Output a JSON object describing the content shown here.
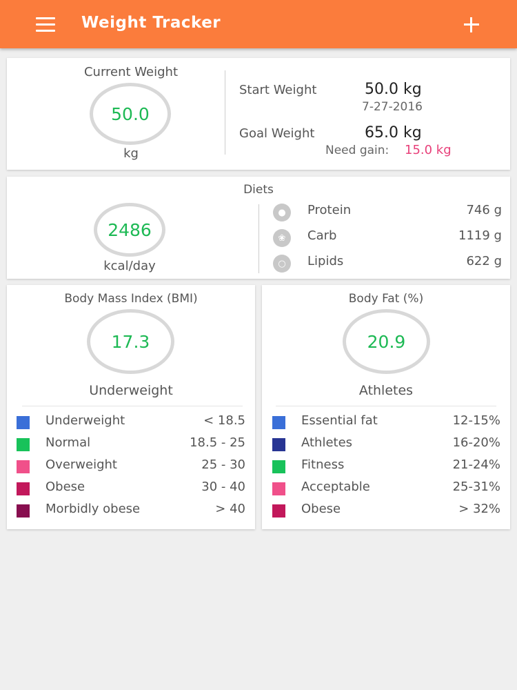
{
  "app": {
    "title": "Weight Tracker",
    "menu_icon": "hamburger-menu-icon",
    "add_icon": "plus-icon",
    "accent": "#fb7c3c"
  },
  "weight": {
    "heading": "Current Weight",
    "current": "50.0",
    "unit": "kg",
    "start_label": "Start Weight",
    "start_value": "50.0 kg",
    "start_date": "7-27-2016",
    "goal_label": "Goal Weight",
    "goal_value": "65.0 kg",
    "need_label": "Need gain:",
    "need_value": "15.0 kg"
  },
  "diets": {
    "heading": "Diets",
    "kcal": "2486",
    "kcal_unit": "kcal/day",
    "items": [
      {
        "label": "Protein",
        "value": "746 g",
        "icon": "protein-icon"
      },
      {
        "label": "Carb",
        "value": "1119 g",
        "icon": "wheat-icon"
      },
      {
        "label": "Lipids",
        "value": "622 g",
        "icon": "lipids-icon"
      }
    ]
  },
  "bmi": {
    "heading": "Body Mass Index (BMI)",
    "value": "17.3",
    "status": "Underweight",
    "legend": [
      {
        "label": "Underweight",
        "range": "< 18.5",
        "color": "#3a6fd8"
      },
      {
        "label": "Normal",
        "range": "18.5 - 25",
        "color": "#18c25a"
      },
      {
        "label": "Overweight",
        "range": "25 - 30",
        "color": "#f0508a"
      },
      {
        "label": "Obese",
        "range": "30 - 40",
        "color": "#c2185b"
      },
      {
        "label": "Morbidly obese",
        "range": "> 40",
        "color": "#880e4f"
      }
    ]
  },
  "fat": {
    "heading": "Body Fat (%)",
    "value": "20.9",
    "status": "Athletes",
    "legend": [
      {
        "label": "Essential fat",
        "range": "12-15%",
        "color": "#3a6fd8"
      },
      {
        "label": "Athletes",
        "range": "16-20%",
        "color": "#283593"
      },
      {
        "label": "Fitness",
        "range": "21-24%",
        "color": "#18c25a"
      },
      {
        "label": "Acceptable",
        "range": "25-31%",
        "color": "#f0508a"
      },
      {
        "label": "Obese",
        "range": "> 32%",
        "color": "#c2185b"
      }
    ]
  }
}
